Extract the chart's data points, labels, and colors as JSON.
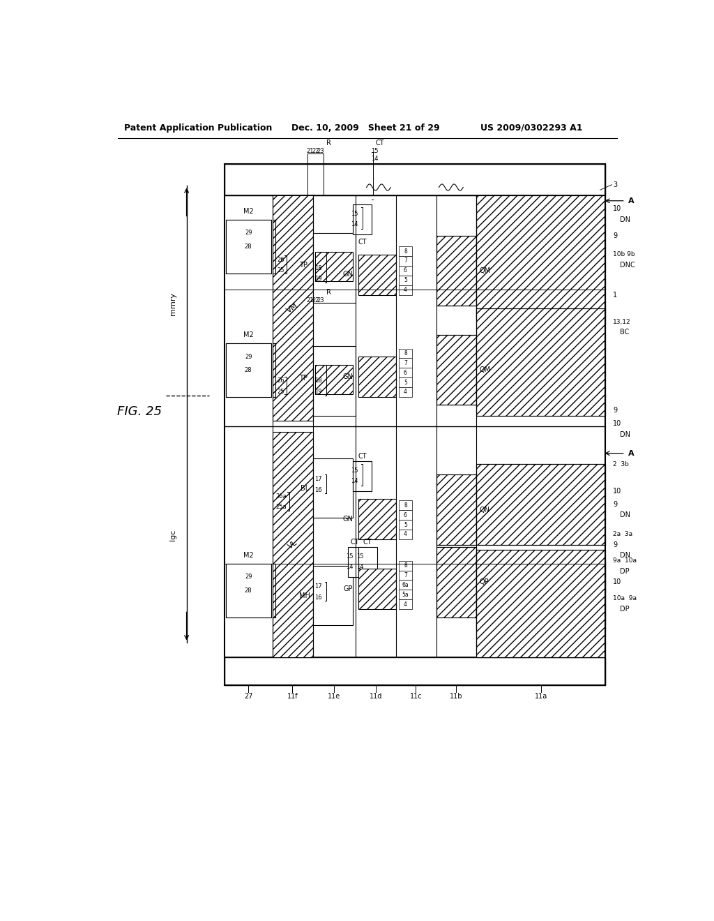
{
  "title": "FIG. 25",
  "header_left": "Patent Application Publication",
  "header_center": "Dec. 10, 2009   Sheet 21 of 29",
  "header_right": "US 2009/0302293 A1",
  "background": "#ffffff",
  "line_color": "#000000",
  "fig_label": "FIG. 25",
  "y_axis_label": "mmry",
  "x_axis_label": "lgc"
}
